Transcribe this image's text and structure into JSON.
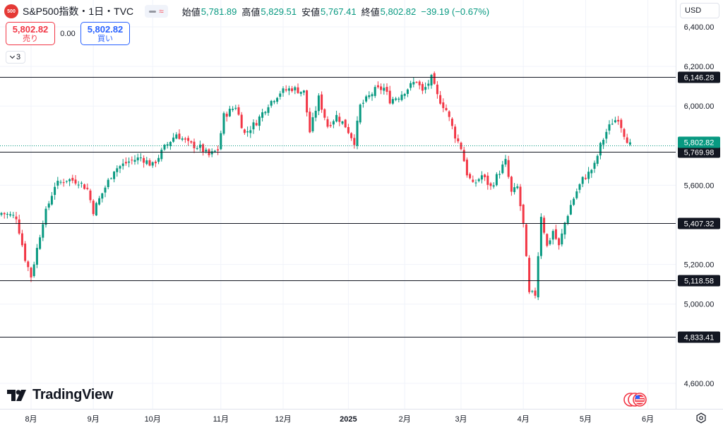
{
  "symbol": {
    "badge": "500",
    "name": "S&P500指数・1日・TVC"
  },
  "ohlc": {
    "open_label": "始値",
    "open": "5,781.89",
    "high_label": "高値",
    "high": "5,829.51",
    "low_label": "安値",
    "low": "5,767.41",
    "close_label": "終値",
    "close": "5,802.82",
    "change": "−39.19 (−0.67%)"
  },
  "trade": {
    "sell_price": "5,802.82",
    "sell_label": "売り",
    "spread": "0.00",
    "buy_price": "5,802.82",
    "buy_label": "買い"
  },
  "indicators_count": "3",
  "currency": "USD",
  "logo_text": "TradingView",
  "colors": {
    "up": "#089981",
    "down": "#f23645",
    "last_price": "#089981",
    "level_line": "#131722"
  },
  "chart_data": {
    "type": "candlestick",
    "symbol": "S&P500指数",
    "interval": "1日",
    "ylim": [
      4440,
      6500
    ],
    "yticks": [
      {
        "v": 6400,
        "label": "6,400.00"
      },
      {
        "v": 6200,
        "label": "6,200.00"
      },
      {
        "v": 6000,
        "label": "6,000.00"
      },
      {
        "v": 5600,
        "label": "5,600.00"
      },
      {
        "v": 5200,
        "label": "5,200.00"
      },
      {
        "v": 5000,
        "label": "5,000.00"
      },
      {
        "v": 4600,
        "label": "4,600.00"
      }
    ],
    "xticks": [
      {
        "i": 10,
        "label": "8月"
      },
      {
        "i": 31,
        "label": "9月"
      },
      {
        "i": 51,
        "label": "10月"
      },
      {
        "i": 74,
        "label": "11月"
      },
      {
        "i": 95,
        "label": "12月"
      },
      {
        "i": 117,
        "label": "2025"
      },
      {
        "i": 136,
        "label": "2月"
      },
      {
        "i": 155,
        "label": "3月"
      },
      {
        "i": 176,
        "label": "4月"
      },
      {
        "i": 197,
        "label": "5月"
      },
      {
        "i": 218,
        "label": "6月"
      }
    ],
    "horizontal_levels": [
      {
        "v": 6146.28,
        "label": "6,146.28"
      },
      {
        "v": 5769.98,
        "label": "5,769.98"
      },
      {
        "v": 5407.32,
        "label": "5,407.32"
      },
      {
        "v": 5118.58,
        "label": "5,118.58"
      },
      {
        "v": 4833.41,
        "label": "4,833.41"
      }
    ],
    "last_price": {
      "v": 5802.82,
      "label": "5,802.82"
    },
    "close_path": [
      [
        0,
        5460
      ],
      [
        5,
        5440
      ],
      [
        8,
        5230
      ],
      [
        10,
        5140
      ],
      [
        14,
        5420
      ],
      [
        18,
        5600
      ],
      [
        22,
        5630
      ],
      [
        26,
        5620
      ],
      [
        29,
        5580
      ],
      [
        31,
        5470
      ],
      [
        34,
        5560
      ],
      [
        38,
        5680
      ],
      [
        43,
        5720
      ],
      [
        47,
        5740
      ],
      [
        51,
        5700
      ],
      [
        55,
        5790
      ],
      [
        59,
        5860
      ],
      [
        63,
        5810
      ],
      [
        67,
        5790
      ],
      [
        70,
        5750
      ],
      [
        73,
        5780
      ],
      [
        75,
        5950
      ],
      [
        79,
        6000
      ],
      [
        82,
        5860
      ],
      [
        86,
        5920
      ],
      [
        90,
        6010
      ],
      [
        94,
        6070
      ],
      [
        98,
        6090
      ],
      [
        102,
        6070
      ],
      [
        104,
        5870
      ],
      [
        107,
        6040
      ],
      [
        110,
        5900
      ],
      [
        113,
        5950
      ],
      [
        116,
        5900
      ],
      [
        119,
        5820
      ],
      [
        121,
        6000
      ],
      [
        126,
        6080
      ],
      [
        129,
        6090
      ],
      [
        131,
        6030
      ],
      [
        134,
        6050
      ],
      [
        137,
        6090
      ],
      [
        140,
        6130
      ],
      [
        142,
        6070
      ],
      [
        145,
        6140
      ],
      [
        147,
        6050
      ],
      [
        150,
        5980
      ],
      [
        153,
        5850
      ],
      [
        155,
        5790
      ],
      [
        157,
        5660
      ],
      [
        159,
        5600
      ],
      [
        162,
        5650
      ],
      [
        165,
        5590
      ],
      [
        168,
        5670
      ],
      [
        170,
        5720
      ],
      [
        172,
        5560
      ],
      [
        174,
        5590
      ],
      [
        176,
        5400
      ],
      [
        178,
        5050
      ],
      [
        180,
        5050
      ],
      [
        182,
        5450
      ],
      [
        184,
        5290
      ],
      [
        186,
        5370
      ],
      [
        188,
        5290
      ],
      [
        190,
        5410
      ],
      [
        192,
        5500
      ],
      [
        194,
        5570
      ],
      [
        196,
        5630
      ],
      [
        198,
        5660
      ],
      [
        200,
        5700
      ],
      [
        202,
        5800
      ],
      [
        204,
        5870
      ],
      [
        206,
        5920
      ],
      [
        208,
        5940
      ],
      [
        210,
        5860
      ],
      [
        212,
        5802.82
      ]
    ]
  }
}
